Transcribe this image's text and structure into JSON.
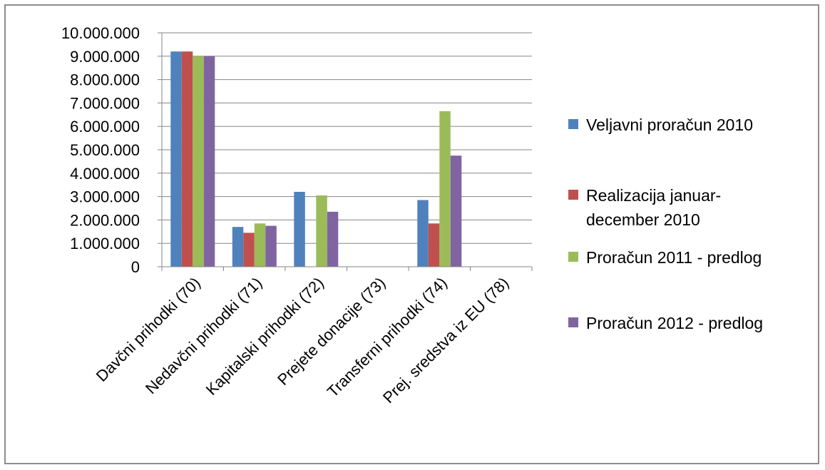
{
  "colors": {
    "series": [
      "#4f81bd",
      "#c0504d",
      "#9bbb59",
      "#8064a2"
    ],
    "grid": "#868686",
    "axis": "#868686"
  },
  "chart_data": {
    "type": "bar",
    "title": "",
    "xlabel": "",
    "ylabel": "",
    "ylim": [
      0,
      10000000
    ],
    "ytick_step": 1000000,
    "ytick_labels": [
      "0",
      "1.000.000",
      "2.000.000",
      "3.000.000",
      "4.000.000",
      "5.000.000",
      "6.000.000",
      "7.000.000",
      "8.000.000",
      "9.000.000",
      "10.000.000"
    ],
    "grid": true,
    "legend_position": "right",
    "categories": [
      "Davčni prihodki (70)",
      "Nedavčni prihodki (71)",
      "Kapitalski prihodki (72)",
      "Prejete donacije (73)",
      "Transferni prihodki (74)",
      "Prej. sredstva iz EU (78)"
    ],
    "series": [
      {
        "name": "Veljavni proračun  2010",
        "legend_lines": [
          "Veljavni proračun  2010"
        ],
        "values": [
          9200000,
          1700000,
          3200000,
          0,
          2850000,
          0
        ]
      },
      {
        "name": "Realizacija januar-december 2010",
        "legend_lines": [
          "Realizacija januar-",
          "december 2010"
        ],
        "values": [
          9200000,
          1450000,
          0,
          0,
          1850000,
          0
        ]
      },
      {
        "name": "Proračun 2011 - predlog",
        "legend_lines": [
          "Proračun 2011 - predlog"
        ],
        "values": [
          9000000,
          1850000,
          3050000,
          0,
          6650000,
          0
        ]
      },
      {
        "name": "Proračun 2012 - predlog",
        "legend_lines": [
          "Proračun 2012 - predlog"
        ],
        "values": [
          9000000,
          1750000,
          2350000,
          0,
          4750000,
          0
        ]
      }
    ]
  }
}
